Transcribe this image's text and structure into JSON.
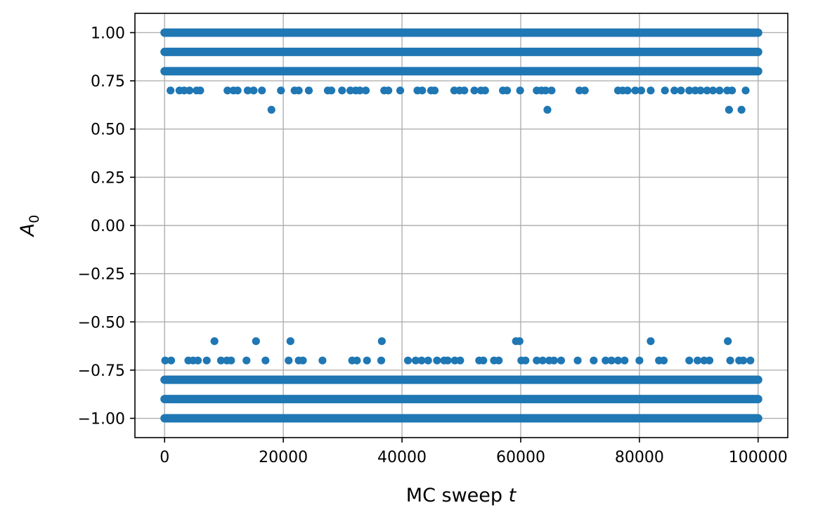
{
  "chart_data": {
    "type": "scatter",
    "xlabel": "MC sweep",
    "xlabel_var": "t",
    "ylabel": "A",
    "ylabel_sub": "0",
    "xlim": [
      -5000,
      105000
    ],
    "ylim": [
      -1.1,
      1.1
    ],
    "xticks": [
      0,
      20000,
      40000,
      60000,
      80000,
      100000
    ],
    "xtick_labels": [
      "0",
      "20000",
      "40000",
      "60000",
      "80000",
      "100000"
    ],
    "yticks": [
      -1.0,
      -0.75,
      -0.5,
      -0.25,
      0.0,
      0.25,
      0.5,
      0.75,
      1.0
    ],
    "ytick_labels": [
      "−1.00",
      "−0.75",
      "−0.50",
      "−0.25",
      "0.00",
      "0.25",
      "0.50",
      "0.75",
      "1.00"
    ],
    "grid": true,
    "marker_color": "#1f77b4",
    "dense_bands": [
      {
        "y": 1.0,
        "x_range": [
          0,
          100000
        ]
      },
      {
        "y": 0.9,
        "x_range": [
          0,
          100000
        ]
      },
      {
        "y": 0.8,
        "x_range": [
          0,
          100000
        ]
      },
      {
        "y": -0.8,
        "x_range": [
          0,
          100000
        ]
      },
      {
        "y": -0.9,
        "x_range": [
          0,
          100000
        ]
      },
      {
        "y": -1.0,
        "x_range": [
          0,
          100000
        ]
      }
    ],
    "series": [
      {
        "values": [
          {
            "x": 1000,
            "y": 0.7
          },
          {
            "x": 2500,
            "y": 0.7
          },
          {
            "x": 3300,
            "y": 0.7
          },
          {
            "x": 4200,
            "y": 0.7
          },
          {
            "x": 5400,
            "y": 0.7
          },
          {
            "x": 6000,
            "y": 0.7
          },
          {
            "x": 10600,
            "y": 0.7
          },
          {
            "x": 11600,
            "y": 0.7
          },
          {
            "x": 12300,
            "y": 0.7
          },
          {
            "x": 14000,
            "y": 0.7
          },
          {
            "x": 15000,
            "y": 0.7
          },
          {
            "x": 16400,
            "y": 0.7
          },
          {
            "x": 18000,
            "y": 0.6
          },
          {
            "x": 19600,
            "y": 0.7
          },
          {
            "x": 21900,
            "y": 0.7
          },
          {
            "x": 22600,
            "y": 0.7
          },
          {
            "x": 24300,
            "y": 0.7
          },
          {
            "x": 27500,
            "y": 0.7
          },
          {
            "x": 28100,
            "y": 0.7
          },
          {
            "x": 29900,
            "y": 0.7
          },
          {
            "x": 31300,
            "y": 0.7
          },
          {
            "x": 32200,
            "y": 0.7
          },
          {
            "x": 32900,
            "y": 0.7
          },
          {
            "x": 33900,
            "y": 0.7
          },
          {
            "x": 37000,
            "y": 0.7
          },
          {
            "x": 37700,
            "y": 0.7
          },
          {
            "x": 39700,
            "y": 0.7
          },
          {
            "x": 42600,
            "y": 0.7
          },
          {
            "x": 43400,
            "y": 0.7
          },
          {
            "x": 44900,
            "y": 0.7
          },
          {
            "x": 45500,
            "y": 0.7
          },
          {
            "x": 48800,
            "y": 0.7
          },
          {
            "x": 49700,
            "y": 0.7
          },
          {
            "x": 50500,
            "y": 0.7
          },
          {
            "x": 52200,
            "y": 0.7
          },
          {
            "x": 53300,
            "y": 0.7
          },
          {
            "x": 54000,
            "y": 0.7
          },
          {
            "x": 57000,
            "y": 0.7
          },
          {
            "x": 57700,
            "y": 0.7
          },
          {
            "x": 59900,
            "y": 0.7
          },
          {
            "x": 62700,
            "y": 0.7
          },
          {
            "x": 63500,
            "y": 0.7
          },
          {
            "x": 64200,
            "y": 0.7
          },
          {
            "x": 64500,
            "y": 0.6
          },
          {
            "x": 65200,
            "y": 0.7
          },
          {
            "x": 69900,
            "y": 0.7
          },
          {
            "x": 70800,
            "y": 0.7
          },
          {
            "x": 76400,
            "y": 0.7
          },
          {
            "x": 77200,
            "y": 0.7
          },
          {
            "x": 78000,
            "y": 0.7
          },
          {
            "x": 79300,
            "y": 0.7
          },
          {
            "x": 80300,
            "y": 0.7
          },
          {
            "x": 81900,
            "y": 0.7
          },
          {
            "x": 84300,
            "y": 0.7
          },
          {
            "x": 85900,
            "y": 0.7
          },
          {
            "x": 87000,
            "y": 0.7
          },
          {
            "x": 88400,
            "y": 0.7
          },
          {
            "x": 89400,
            "y": 0.7
          },
          {
            "x": 90300,
            "y": 0.7
          },
          {
            "x": 91400,
            "y": 0.7
          },
          {
            "x": 92400,
            "y": 0.7
          },
          {
            "x": 93500,
            "y": 0.7
          },
          {
            "x": 94800,
            "y": 0.7
          },
          {
            "x": 95100,
            "y": 0.6
          },
          {
            "x": 95600,
            "y": 0.7
          },
          {
            "x": 97200,
            "y": 0.6
          },
          {
            "x": 97900,
            "y": 0.7
          },
          {
            "x": 100,
            "y": -0.7
          },
          {
            "x": 1100,
            "y": -0.7
          },
          {
            "x": 4000,
            "y": -0.7
          },
          {
            "x": 4800,
            "y": -0.7
          },
          {
            "x": 5600,
            "y": -0.7
          },
          {
            "x": 7100,
            "y": -0.7
          },
          {
            "x": 8400,
            "y": -0.6
          },
          {
            "x": 9500,
            "y": -0.7
          },
          {
            "x": 10500,
            "y": -0.7
          },
          {
            "x": 11200,
            "y": -0.7
          },
          {
            "x": 13800,
            "y": -0.7
          },
          {
            "x": 15400,
            "y": -0.6
          },
          {
            "x": 17000,
            "y": -0.7
          },
          {
            "x": 20900,
            "y": -0.7
          },
          {
            "x": 21200,
            "y": -0.6
          },
          {
            "x": 22600,
            "y": -0.7
          },
          {
            "x": 23300,
            "y": -0.7
          },
          {
            "x": 26600,
            "y": -0.7
          },
          {
            "x": 31600,
            "y": -0.7
          },
          {
            "x": 32400,
            "y": -0.7
          },
          {
            "x": 34100,
            "y": -0.7
          },
          {
            "x": 36500,
            "y": -0.7
          },
          {
            "x": 36600,
            "y": -0.6
          },
          {
            "x": 41000,
            "y": -0.7
          },
          {
            "x": 42300,
            "y": -0.7
          },
          {
            "x": 43300,
            "y": -0.7
          },
          {
            "x": 44400,
            "y": -0.7
          },
          {
            "x": 45900,
            "y": -0.7
          },
          {
            "x": 47100,
            "y": -0.7
          },
          {
            "x": 47700,
            "y": -0.7
          },
          {
            "x": 48900,
            "y": -0.7
          },
          {
            "x": 49800,
            "y": -0.7
          },
          {
            "x": 53000,
            "y": -0.7
          },
          {
            "x": 53700,
            "y": -0.7
          },
          {
            "x": 55500,
            "y": -0.7
          },
          {
            "x": 56300,
            "y": -0.7
          },
          {
            "x": 59200,
            "y": -0.6
          },
          {
            "x": 59800,
            "y": -0.6
          },
          {
            "x": 60100,
            "y": -0.7
          },
          {
            "x": 60800,
            "y": -0.7
          },
          {
            "x": 62700,
            "y": -0.7
          },
          {
            "x": 63700,
            "y": -0.7
          },
          {
            "x": 64800,
            "y": -0.7
          },
          {
            "x": 65600,
            "y": -0.7
          },
          {
            "x": 66800,
            "y": -0.7
          },
          {
            "x": 69600,
            "y": -0.7
          },
          {
            "x": 72300,
            "y": -0.7
          },
          {
            "x": 74300,
            "y": -0.7
          },
          {
            "x": 75300,
            "y": -0.7
          },
          {
            "x": 76400,
            "y": -0.7
          },
          {
            "x": 77500,
            "y": -0.7
          },
          {
            "x": 80000,
            "y": -0.7
          },
          {
            "x": 81900,
            "y": -0.6
          },
          {
            "x": 83300,
            "y": -0.7
          },
          {
            "x": 84100,
            "y": -0.7
          },
          {
            "x": 88400,
            "y": -0.7
          },
          {
            "x": 89800,
            "y": -0.7
          },
          {
            "x": 90900,
            "y": -0.7
          },
          {
            "x": 91800,
            "y": -0.7
          },
          {
            "x": 94900,
            "y": -0.6
          },
          {
            "x": 95300,
            "y": -0.7
          },
          {
            "x": 96800,
            "y": -0.7
          },
          {
            "x": 97500,
            "y": -0.7
          },
          {
            "x": 98700,
            "y": -0.7
          }
        ]
      }
    ]
  }
}
